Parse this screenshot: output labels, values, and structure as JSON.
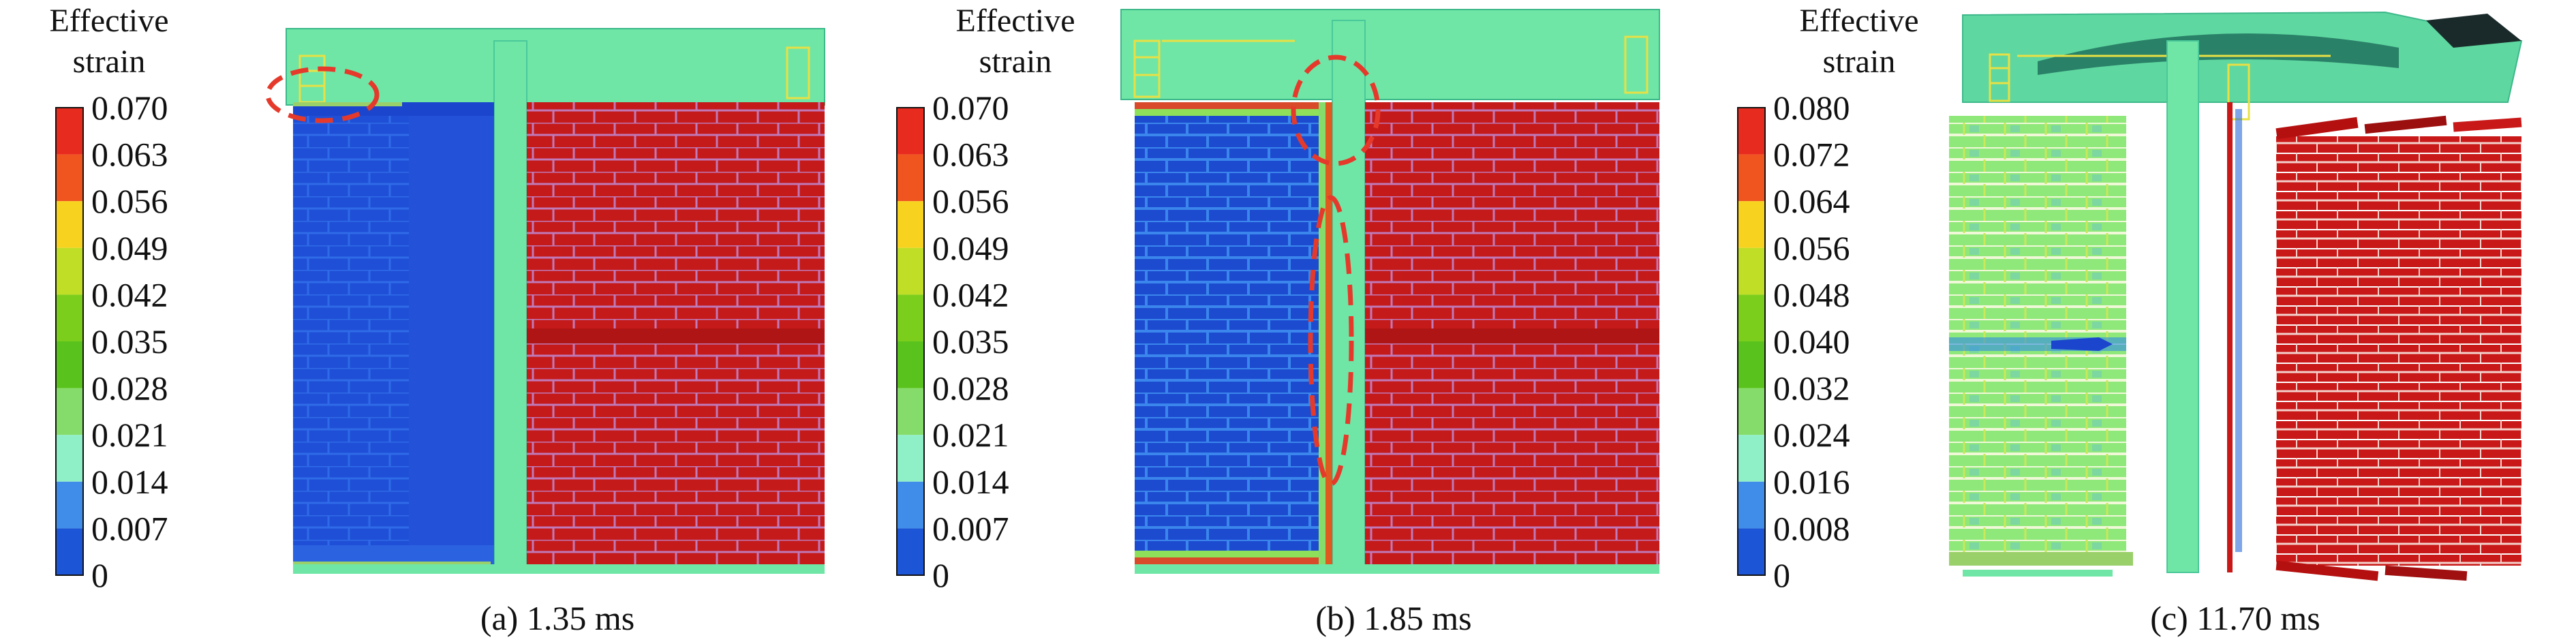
{
  "figure": {
    "panels": [
      {
        "id": "a",
        "caption": "(a) 1.35 ms",
        "legend_title_line1": "Effective",
        "legend_title_line2": "strain",
        "legend_values": [
          "0.070",
          "0.063",
          "0.056",
          "0.049",
          "0.042",
          "0.035",
          "0.028",
          "0.021",
          "0.014",
          "0.007",
          "0"
        ],
        "left_wall_state": "low strain (blue)",
        "right_wall_state": "high strain (red)"
      },
      {
        "id": "b",
        "caption": "(b) 1.85 ms",
        "legend_title_line1": "Effective",
        "legend_title_line2": "strain",
        "legend_values": [
          "0.070",
          "0.063",
          "0.056",
          "0.049",
          "0.042",
          "0.035",
          "0.028",
          "0.021",
          "0.014",
          "0.007",
          "0"
        ],
        "left_wall_state": "low strain with cracking at column joint",
        "right_wall_state": "high strain (red)"
      },
      {
        "id": "c",
        "caption": "(c) 11.70 ms",
        "legend_title_line1": "Effective",
        "legend_title_line2": "strain",
        "legend_values": [
          "0.080",
          "0.072",
          "0.064",
          "0.056",
          "0.048",
          "0.040",
          "0.032",
          "0.024",
          "0.016",
          "0.008",
          "0"
        ],
        "left_wall_state": "fragmenting, medium strain (green)",
        "right_wall_state": "fragmenting, high strain (red)"
      }
    ],
    "colorbar_colors": [
      "#e82b1f",
      "#f0541f",
      "#f7d21e",
      "#c0de26",
      "#7cce1c",
      "#5ac21d",
      "#86dc6a",
      "#8fefc6",
      "#3f8de8",
      "#1c55d6"
    ]
  }
}
